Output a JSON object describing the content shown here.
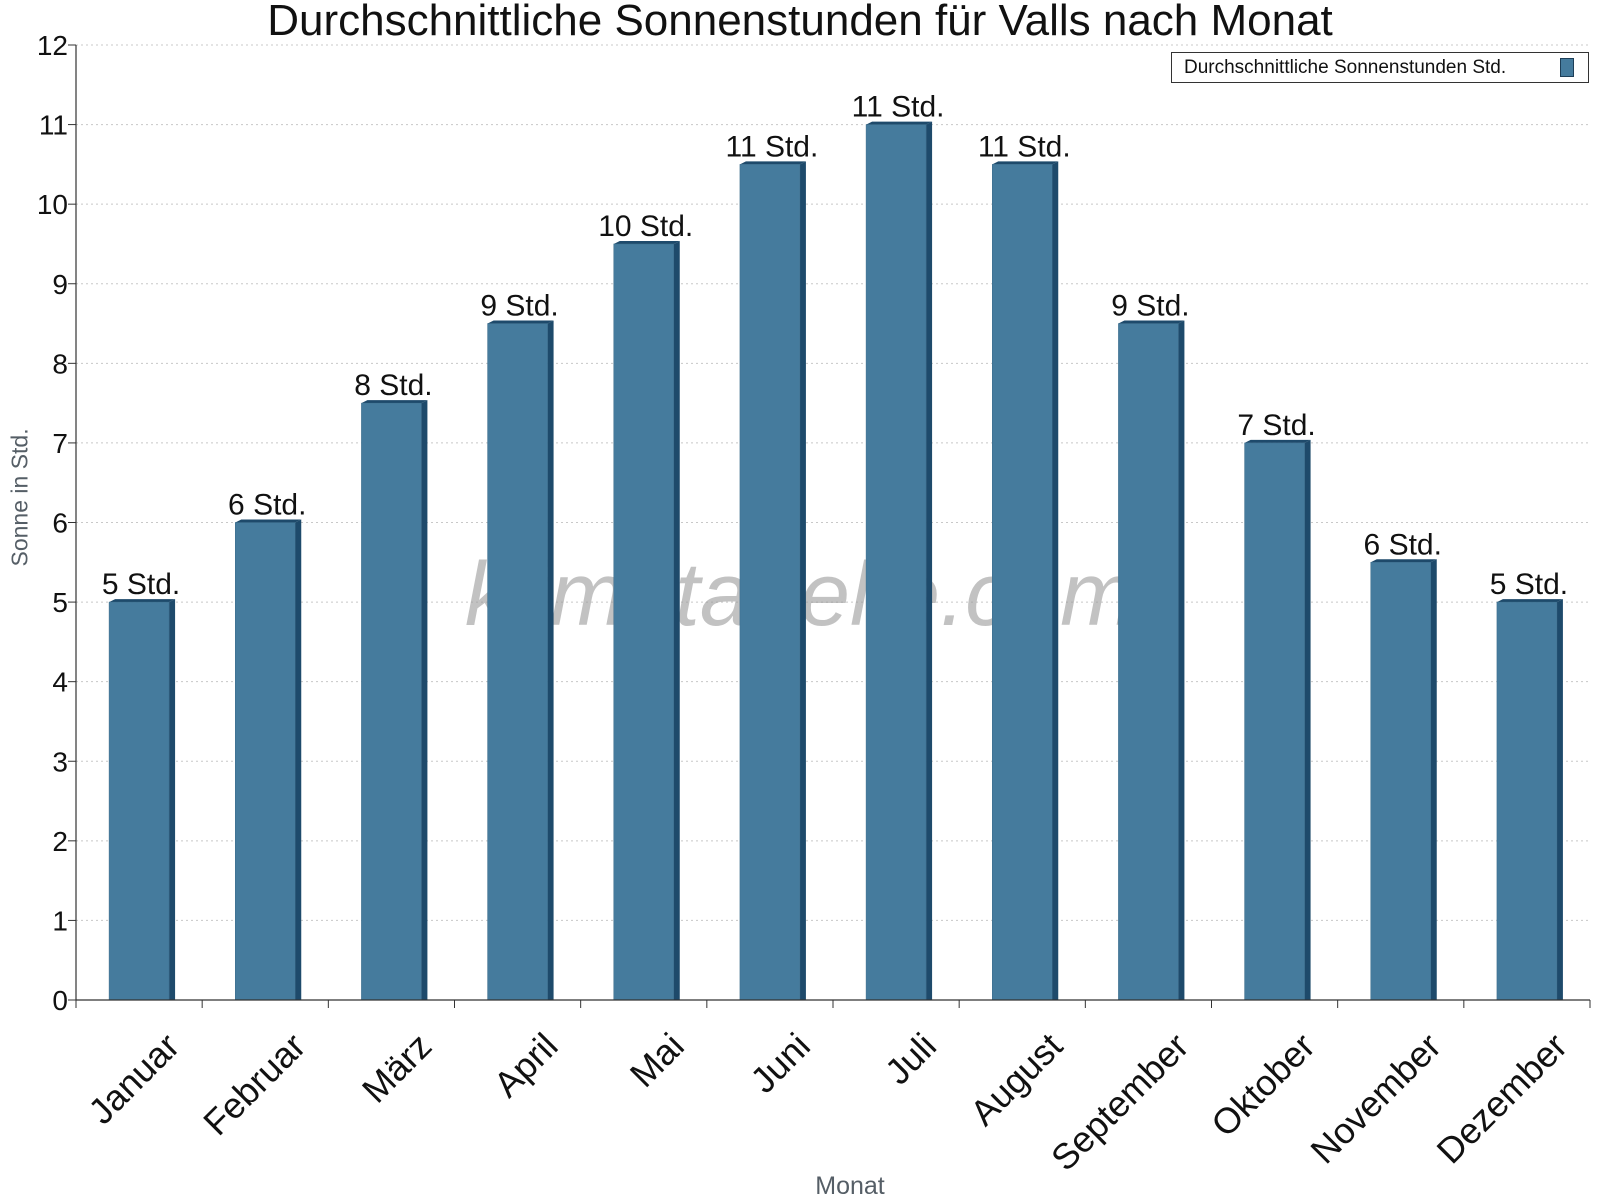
{
  "chart_data": {
    "type": "bar",
    "title": "Durchschnittliche Sonnenstunden für Valls nach Monat",
    "xlabel": "Monat",
    "ylabel": "Sonne in Std.",
    "ylim": [
      0,
      12
    ],
    "yticks": [
      "0",
      "1",
      "2",
      "3",
      "4",
      "5",
      "6",
      "7",
      "8",
      "9",
      "10",
      "11",
      "12"
    ],
    "grid": true,
    "legend_position": "top-right",
    "categories": [
      "Januar",
      "Februar",
      "März",
      "April",
      "Mai",
      "Juni",
      "Juli",
      "August",
      "September",
      "Oktober",
      "November",
      "Dezember"
    ],
    "series": [
      {
        "name": "Durchschnittliche Sonnenstunden Std.",
        "values": [
          5,
          6,
          7.5,
          8.5,
          9.5,
          10.5,
          11,
          10.5,
          8.5,
          7,
          5.5,
          5
        ],
        "data_labels": [
          "5 Std.",
          "6 Std.",
          "8 Std.",
          "9 Std.",
          "10 Std.",
          "11 Std.",
          "11 Std.",
          "11 Std.",
          "9 Std.",
          "7 Std.",
          "6 Std.",
          "5 Std."
        ],
        "color": "#457b9d",
        "edge_color": "#1e4a6b"
      }
    ],
    "watermark": "klimatabelle.com"
  }
}
